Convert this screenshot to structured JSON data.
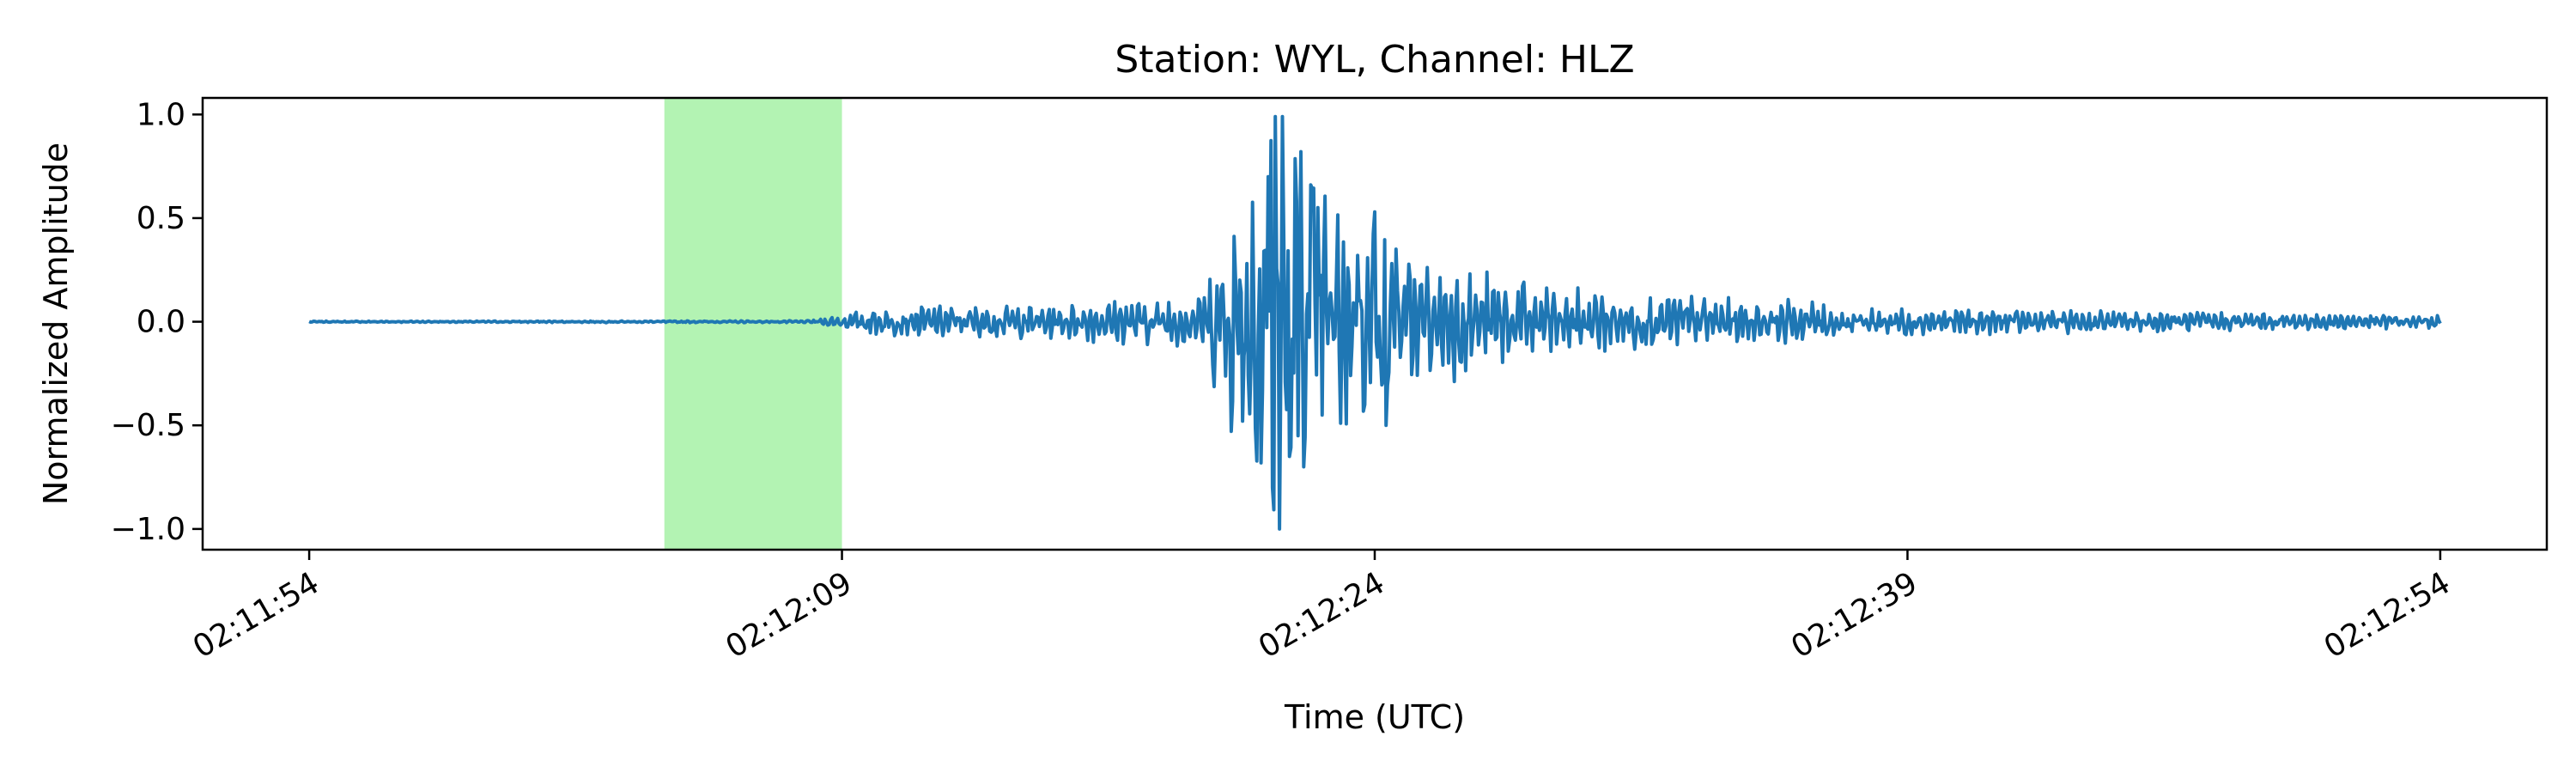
{
  "chart_data": {
    "type": "line",
    "title": "Station: WYL, Channel: HLZ",
    "xlabel": "Time (UTC)",
    "ylabel": "Normalized Amplitude",
    "x_axis": {
      "ticks": [
        "02:11:54",
        "02:12:09",
        "02:12:24",
        "02:12:39",
        "02:12:54"
      ],
      "range": [
        "02:11:51",
        "02:12:57"
      ]
    },
    "ylim": [
      -1.1,
      1.08
    ],
    "yticks": [
      {
        "value": 1.0,
        "label": "1.0"
      },
      {
        "value": 0.5,
        "label": "0.5"
      },
      {
        "value": 0.0,
        "label": "0.0"
      },
      {
        "value": -0.5,
        "label": "−0.5"
      },
      {
        "value": -1.0,
        "label": "−1.0"
      }
    ],
    "highlight_window": {
      "start": "02:12:04",
      "end": "02:12:09",
      "color": "#b3f3b3"
    },
    "series": [
      {
        "color": "#1f77b4",
        "start": "02:11:54",
        "end": "02:12:54",
        "envelope": [
          {
            "t": "02:11:54",
            "amp": 0.003
          },
          {
            "t": "02:12:08",
            "amp": 0.005
          },
          {
            "t": "02:12:09",
            "amp": 0.03
          },
          {
            "t": "02:12:10",
            "amp": 0.07
          },
          {
            "t": "02:12:15",
            "amp": 0.08
          },
          {
            "t": "02:12:19",
            "amp": 0.12
          },
          {
            "t": "02:12:21",
            "amp": 1.0
          },
          {
            "t": "02:12:23",
            "amp": 0.6
          },
          {
            "t": "02:12:25",
            "amp": 0.3
          },
          {
            "t": "02:12:30",
            "amp": 0.15
          },
          {
            "t": "02:12:40",
            "amp": 0.06
          },
          {
            "t": "02:12:54",
            "amp": 0.03
          }
        ],
        "peaks": [
          {
            "t": "02:12:21.0",
            "value": 0.7
          },
          {
            "t": "02:12:21.1",
            "value": -0.8
          },
          {
            "t": "02:12:21.2",
            "value": 0.99
          },
          {
            "t": "02:12:21.3",
            "value": -1.0
          },
          {
            "t": "02:12:21.4",
            "value": 0.99
          },
          {
            "t": "02:12:21.6",
            "value": -0.65
          },
          {
            "t": "02:12:21.8",
            "value": 0.58
          },
          {
            "t": "02:12:22.0",
            "value": -0.7
          },
          {
            "t": "02:12:22.2",
            "value": 0.66
          },
          {
            "t": "02:12:22.5",
            "value": -0.45
          },
          {
            "t": "02:12:23.5",
            "value": 0.32
          },
          {
            "t": "02:12:23.7",
            "value": -0.4
          },
          {
            "t": "02:12:24.0",
            "value": 0.53
          },
          {
            "t": "02:12:24.3",
            "value": -0.5
          },
          {
            "t": "02:12:24.6",
            "value": 0.35
          }
        ]
      }
    ]
  }
}
